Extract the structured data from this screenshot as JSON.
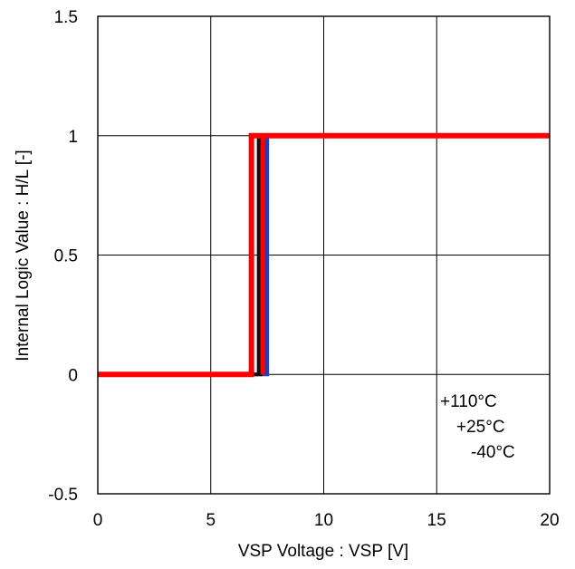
{
  "chart_data": {
    "type": "line",
    "title": "",
    "xlabel": "VSP Voltage : VSP [V]",
    "ylabel": "Internal Logic Value : H/L [-]",
    "xlim": [
      0,
      20
    ],
    "ylim": [
      -0.5,
      1.5
    ],
    "xticks": [
      0,
      5,
      10,
      15,
      20
    ],
    "xtick_labels": [
      "0",
      "5",
      "10",
      "15",
      "20"
    ],
    "yticks": [
      -0.5,
      0,
      0.5,
      1,
      1.5
    ],
    "ytick_labels": [
      "-0.5",
      "0",
      "0.5",
      "1",
      "1.5"
    ],
    "grid": true,
    "series": [
      {
        "name": "-40°C",
        "color": "#1f3fbf",
        "x": [
          0,
          7.5,
          7.5,
          20
        ],
        "y": [
          0,
          0,
          1,
          1
        ]
      },
      {
        "name": "+25°C",
        "color": "#111111",
        "x": [
          0,
          7.2,
          7.2,
          20
        ],
        "y": [
          0,
          0,
          1,
          1
        ]
      },
      {
        "name": "+110°C",
        "color": "#ff0000",
        "x": [
          0,
          6.8,
          6.8,
          20
        ],
        "y": [
          0,
          0,
          1,
          1
        ]
      }
    ],
    "hysteresis_return_x": [
      7.4,
      7.1,
      7.3
    ],
    "legend": {
      "position": "bottom-right",
      "entries": [
        "+110°C",
        "+25°C",
        "-40°C"
      ]
    }
  }
}
